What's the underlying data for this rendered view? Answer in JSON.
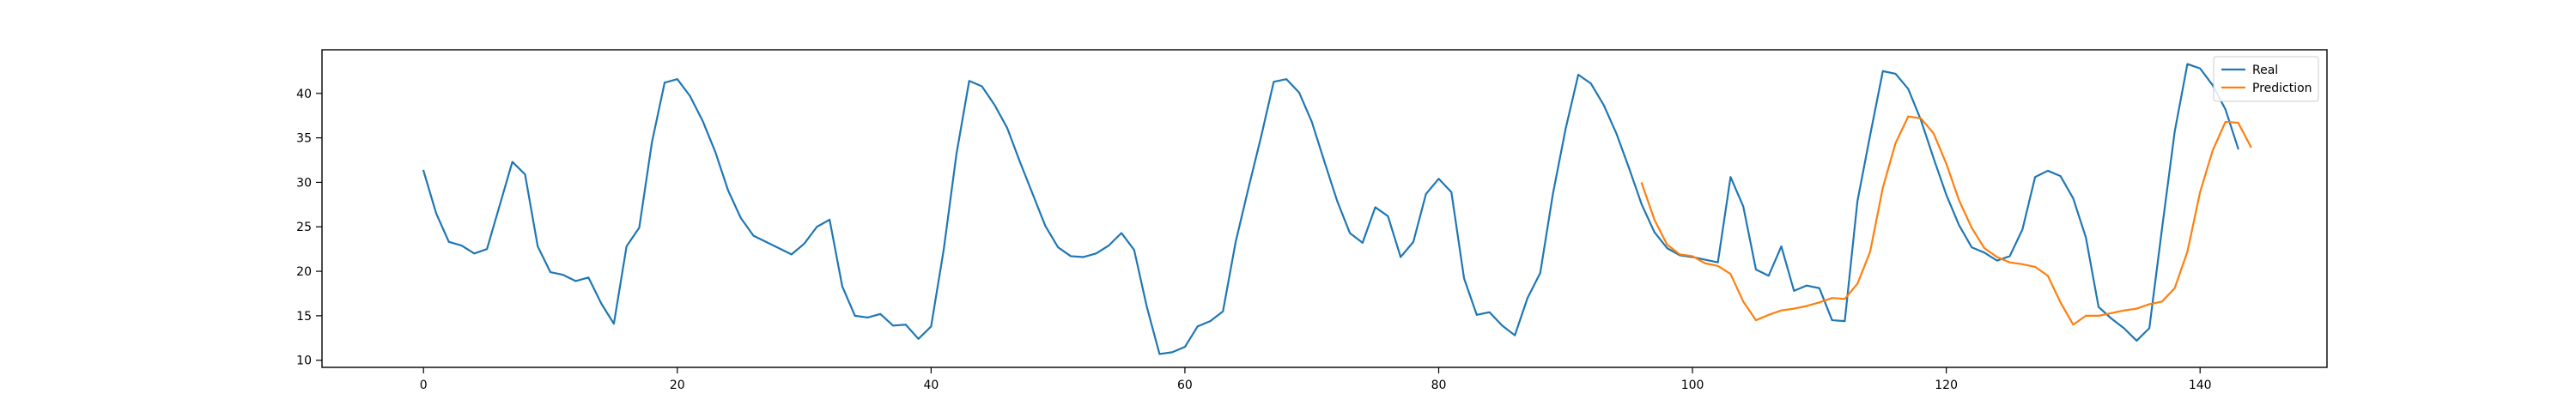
{
  "chart_data": {
    "type": "line",
    "title": "",
    "xlabel": "",
    "ylabel": "",
    "xlim": [
      -8,
      150
    ],
    "ylim": [
      9.2,
      44.9
    ],
    "xticks": [
      0,
      20,
      40,
      60,
      80,
      100,
      120,
      140
    ],
    "yticks": [
      10,
      15,
      20,
      25,
      30,
      35,
      40
    ],
    "grid": false,
    "legend_position": "top-right",
    "series": [
      {
        "name": "Real",
        "color": "#1f77b4",
        "x_start": 0,
        "values": [
          31.3,
          26.5,
          23.3,
          22.9,
          22.0,
          22.5,
          27.4,
          32.3,
          30.9,
          22.8,
          19.9,
          19.6,
          18.9,
          19.3,
          16.4,
          14.1,
          22.8,
          24.9,
          34.5,
          41.2,
          41.6,
          39.7,
          36.9,
          33.4,
          29.1,
          26.0,
          24.0,
          23.3,
          22.6,
          21.9,
          23.1,
          25.0,
          25.8,
          18.3,
          15.0,
          14.8,
          15.2,
          13.9,
          14.0,
          12.4,
          13.8,
          22.5,
          33.2,
          41.4,
          40.8,
          38.7,
          36.1,
          32.3,
          28.7,
          25.1,
          22.7,
          21.7,
          21.6,
          22.0,
          22.9,
          24.3,
          22.4,
          16.0,
          10.7,
          10.9,
          11.5,
          13.8,
          14.4,
          15.5,
          23.3,
          29.3,
          35.1,
          41.3,
          41.6,
          40.1,
          36.8,
          32.3,
          27.9,
          24.3,
          23.2,
          27.2,
          26.2,
          21.6,
          23.3,
          28.7,
          30.4,
          28.9,
          19.2,
          15.1,
          15.4,
          13.9,
          12.8,
          17.0,
          19.8,
          28.7,
          36.0,
          42.1,
          41.1,
          38.7,
          35.5,
          31.6,
          27.5,
          24.4,
          22.6,
          21.8,
          21.6,
          21.3,
          21.0,
          30.6,
          27.3,
          20.2,
          19.5,
          22.8,
          17.8,
          18.4,
          18.1,
          14.5,
          14.4,
          27.9,
          35.3,
          42.5,
          42.2,
          40.5,
          37.0,
          32.7,
          28.6,
          25.2,
          22.7,
          22.1,
          21.2,
          21.7,
          24.7,
          30.6,
          31.3,
          30.7,
          28.2,
          23.8,
          16.0,
          14.7,
          13.6,
          12.2,
          13.6,
          24.8,
          35.7,
          43.3,
          42.8,
          40.9,
          38.2,
          33.8
        ]
      },
      {
        "name": "Prediction",
        "color": "#ff7f0e",
        "x_start": 96,
        "values": [
          29.9,
          25.8,
          23.0,
          21.9,
          21.7,
          20.9,
          20.6,
          19.7,
          16.6,
          14.5,
          15.1,
          15.6,
          15.8,
          16.1,
          16.5,
          17.0,
          16.9,
          18.6,
          22.2,
          29.4,
          34.4,
          37.4,
          37.2,
          35.5,
          32.1,
          28.0,
          24.9,
          22.6,
          21.6,
          21.0,
          20.8,
          20.5,
          19.5,
          16.5,
          14.0,
          15.0,
          15.0,
          15.3,
          15.6,
          15.8,
          16.3,
          16.6,
          18.1,
          22.2,
          28.9,
          33.6,
          36.8,
          36.7,
          34.0
        ]
      }
    ]
  }
}
